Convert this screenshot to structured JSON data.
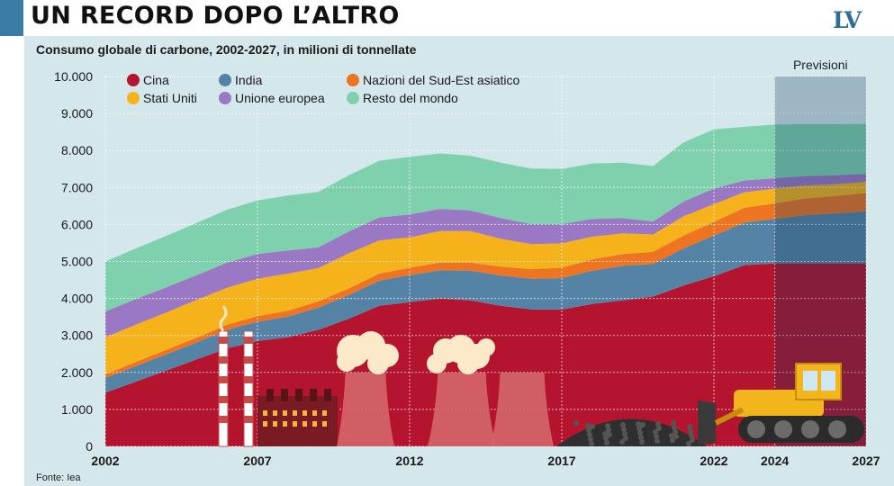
{
  "header": {
    "headline": "UN RECORD DOPO L’ALTRO",
    "logo": "LV"
  },
  "footer": {
    "source": "Fonte: Iea"
  },
  "colors": {
    "accent": "#3a7ca5",
    "panel": "#d4e7eb",
    "Cina": "#b5142f",
    "India": "#5583a6",
    "Nazioni del Sud-Est asiatico": "#ee7422",
    "Stati Uniti": "#f6b21b",
    "Unione europea": "#9b78c4",
    "Resto del mondo": "#7fd1ae",
    "forecast_shade": "#0f3a5c"
  },
  "chart_data": {
    "type": "area",
    "stacked": true,
    "title": "Consumo globale di carbone, 2002-2027, in milioni di tonnellate",
    "ylim": [
      0,
      10000
    ],
    "yticks": [
      "0",
      "1.000",
      "2.000",
      "3.000",
      "4.000",
      "5.000",
      "6.000",
      "7.000",
      "8.000",
      "9.000",
      "10.000"
    ],
    "xtick_labels": [
      "2002",
      "2007",
      "2012",
      "2017",
      "2022",
      "2024",
      "2027"
    ],
    "forecast_label": "Previsioni",
    "forecast_start": 2024,
    "x": [
      2002,
      2003,
      2004,
      2005,
      2006,
      2007,
      2008,
      2009,
      2010,
      2011,
      2012,
      2013,
      2014,
      2015,
      2016,
      2017,
      2018,
      2019,
      2020,
      2021,
      2022,
      2023,
      2024,
      2025,
      2026,
      2027
    ],
    "legend_order": [
      "Cina",
      "India",
      "Nazioni del Sud-Est asiatico",
      "Stati Uniti",
      "Unione europea",
      "Resto del mondo"
    ],
    "series": [
      {
        "name": "Cina",
        "values": [
          1450,
          1750,
          2050,
          2350,
          2650,
          2850,
          2950,
          3150,
          3450,
          3800,
          3900,
          4000,
          3950,
          3800,
          3700,
          3700,
          3850,
          3950,
          4050,
          4350,
          4600,
          4900,
          4950,
          4950,
          4950,
          4950
        ]
      },
      {
        "name": "India",
        "values": [
          400,
          420,
          440,
          460,
          500,
          520,
          560,
          600,
          640,
          680,
          730,
          760,
          800,
          820,
          830,
          850,
          900,
          930,
          880,
          1000,
          1100,
          1150,
          1200,
          1300,
          1350,
          1400
        ]
      },
      {
        "name": "Nazioni del Sud-Est asiatico",
        "values": [
          100,
          110,
          120,
          130,
          140,
          150,
          160,
          170,
          180,
          190,
          200,
          210,
          220,
          240,
          260,
          280,
          300,
          320,
          330,
          350,
          370,
          400,
          420,
          450,
          470,
          500
        ]
      },
      {
        "name": "Stati Uniti",
        "values": [
          1000,
          1010,
          1010,
          1020,
          1000,
          1010,
          1000,
          900,
          950,
          900,
          820,
          850,
          850,
          750,
          680,
          660,
          620,
          560,
          470,
          520,
          480,
          420,
          400,
          350,
          320,
          300
        ]
      },
      {
        "name": "Unione europea",
        "values": [
          700,
          690,
          680,
          670,
          680,
          670,
          630,
          560,
          590,
          620,
          620,
          600,
          560,
          560,
          540,
          520,
          480,
          410,
          350,
          400,
          420,
          320,
          280,
          260,
          240,
          220
        ]
      },
      {
        "name": "Resto del mondo",
        "values": [
          1350,
          1370,
          1390,
          1410,
          1430,
          1450,
          1480,
          1500,
          1520,
          1530,
          1560,
          1500,
          1480,
          1500,
          1500,
          1490,
          1500,
          1500,
          1500,
          1600,
          1600,
          1450,
          1450,
          1400,
          1380,
          1350
        ]
      }
    ]
  }
}
